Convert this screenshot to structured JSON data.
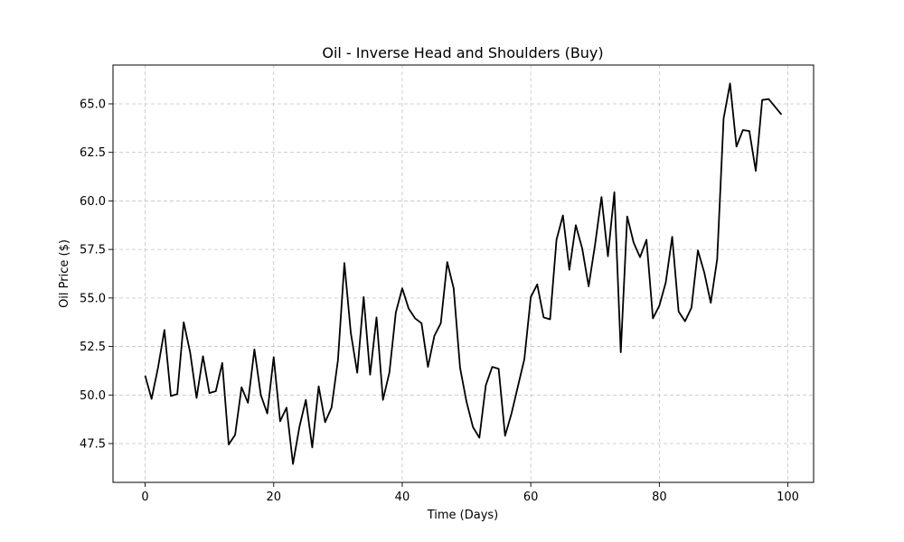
{
  "chart_data": {
    "type": "line",
    "title": "Oil - Inverse Head and Shoulders (Buy)",
    "xlabel": "Time (Days)",
    "ylabel": "Oil Price ($)",
    "xlim": [
      -5,
      104
    ],
    "ylim": [
      45.5,
      67.0
    ],
    "xticks": [
      0,
      20,
      40,
      60,
      80,
      100
    ],
    "yticks": [
      47.5,
      50.0,
      52.5,
      55.0,
      57.5,
      60.0,
      62.5,
      65.0
    ],
    "xtick_labels": [
      "0",
      "20",
      "40",
      "60",
      "80",
      "100"
    ],
    "ytick_labels": [
      "47.5",
      "50.0",
      "52.5",
      "55.0",
      "57.5",
      "60.0",
      "62.5",
      "65.0"
    ],
    "grid": true,
    "line_color": "#000000",
    "x": [
      0,
      1,
      2,
      3,
      4,
      5,
      6,
      7,
      8,
      9,
      10,
      11,
      12,
      13,
      14,
      15,
      16,
      17,
      18,
      19,
      20,
      21,
      22,
      23,
      24,
      25,
      26,
      27,
      28,
      29,
      30,
      31,
      32,
      33,
      34,
      35,
      36,
      37,
      38,
      39,
      40,
      41,
      42,
      43,
      44,
      45,
      46,
      47,
      48,
      49,
      50,
      51,
      52,
      53,
      54,
      55,
      56,
      57,
      58,
      59,
      60,
      61,
      62,
      63,
      64,
      65,
      66,
      67,
      68,
      69,
      70,
      71,
      72,
      73,
      74,
      75,
      76,
      77,
      78,
      79,
      80,
      81,
      82,
      83,
      84,
      85,
      86,
      87,
      88,
      89,
      90,
      91,
      92,
      93,
      94,
      95,
      96,
      97,
      98,
      99
    ],
    "y": [
      51.0,
      49.8,
      51.4,
      53.35,
      49.95,
      50.05,
      53.75,
      52.2,
      49.85,
      52.0,
      50.1,
      50.2,
      51.65,
      47.45,
      47.95,
      50.4,
      49.6,
      52.35,
      50.0,
      49.05,
      51.95,
      48.65,
      49.35,
      46.45,
      48.35,
      49.75,
      47.3,
      50.45,
      48.6,
      49.35,
      51.8,
      56.8,
      53.2,
      51.15,
      55.05,
      51.05,
      54.0,
      49.75,
      51.15,
      54.25,
      55.5,
      54.45,
      53.95,
      53.7,
      51.45,
      53.05,
      53.7,
      56.85,
      55.5,
      51.4,
      49.65,
      48.35,
      47.8,
      50.5,
      51.45,
      51.35,
      47.9,
      49.05,
      50.45,
      51.85,
      55.05,
      55.7,
      54.0,
      53.9,
      58.0,
      59.25,
      56.45,
      58.75,
      57.55,
      55.6,
      57.75,
      60.2,
      57.15,
      60.45,
      52.2,
      59.2,
      57.85,
      57.1,
      58.0,
      53.95,
      54.6,
      55.8,
      58.15,
      54.3,
      53.8,
      54.5,
      57.45,
      56.3,
      54.75,
      57.0,
      64.25,
      66.05,
      62.8,
      63.65,
      63.6,
      61.55,
      65.2,
      65.25,
      64.85,
      64.45
    ]
  }
}
